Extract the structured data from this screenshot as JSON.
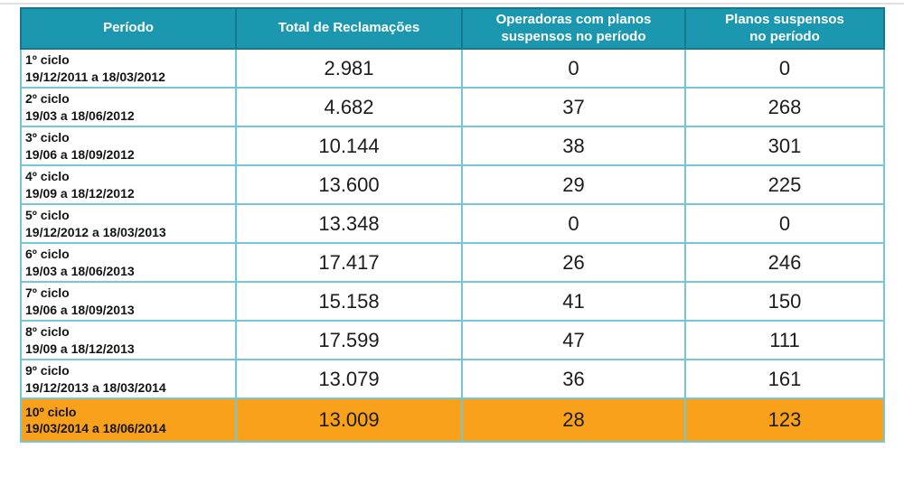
{
  "table": {
    "headers": [
      "Período",
      "Total de Reclamações",
      "Operadoras com planos\nsuspensos no período",
      "Planos suspensos\nno período"
    ],
    "rows": [
      {
        "cycle": "1º ciclo",
        "dates": "19/12/2011 a 18/03/2012",
        "total": "2.981",
        "operators": "0",
        "plans": "0",
        "highlight": false
      },
      {
        "cycle": "2º ciclo",
        "dates": "19/03 a 18/06/2012",
        "total": "4.682",
        "operators": "37",
        "plans": "268",
        "highlight": false
      },
      {
        "cycle": "3º ciclo",
        "dates": "19/06 a 18/09/2012",
        "total": "10.144",
        "operators": "38",
        "plans": "301",
        "highlight": false
      },
      {
        "cycle": "4º ciclo",
        "dates": "19/09 a 18/12/2012",
        "total": "13.600",
        "operators": "29",
        "plans": "225",
        "highlight": false
      },
      {
        "cycle": "5º ciclo",
        "dates": "19/12/2012 a 18/03/2013",
        "total": "13.348",
        "operators": "0",
        "plans": "0",
        "highlight": false
      },
      {
        "cycle": "6º ciclo",
        "dates": "19/03 a 18/06/2013",
        "total": "17.417",
        "operators": "26",
        "plans": "246",
        "highlight": false
      },
      {
        "cycle": "7º ciclo",
        "dates": "19/06 a 18/09/2013",
        "total": "15.158",
        "operators": "41",
        "plans": "150",
        "highlight": false
      },
      {
        "cycle": "8º ciclo",
        "dates": "19/09 a 18/12/2013",
        "total": "17.599",
        "operators": "47",
        "plans": "111",
        "highlight": false
      },
      {
        "cycle": "9º ciclo",
        "dates": "19/12/2013 a 18/03/2014",
        "total": "13.079",
        "operators": "36",
        "plans": "161",
        "highlight": false
      },
      {
        "cycle": "10º ciclo",
        "dates": "19/03/2014 a 18/06/2014",
        "total": "13.009",
        "operators": "28",
        "plans": "123",
        "highlight": true
      }
    ]
  },
  "colors": {
    "header_bg": "#1b98b0",
    "header_border": "#15798d",
    "cell_border": "#76c6da",
    "highlight_bg": "#f9a11b",
    "text": "#1c1c1c",
    "header_text": "#ffffff"
  }
}
